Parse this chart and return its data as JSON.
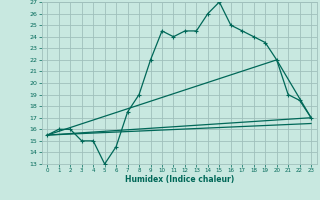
{
  "xlabel": "Humidex (Indice chaleur)",
  "bg_color": "#c8e8e0",
  "grid_color": "#a0c0bc",
  "line_color": "#006858",
  "xlim": [
    -0.5,
    23.5
  ],
  "ylim": [
    13,
    27
  ],
  "xticks": [
    0,
    1,
    2,
    3,
    4,
    5,
    6,
    7,
    8,
    9,
    10,
    11,
    12,
    13,
    14,
    15,
    16,
    17,
    18,
    19,
    20,
    21,
    22,
    23
  ],
  "yticks": [
    13,
    14,
    15,
    16,
    17,
    18,
    19,
    20,
    21,
    22,
    23,
    24,
    25,
    26,
    27
  ],
  "line1_x": [
    0,
    1,
    2,
    3,
    4,
    5,
    6,
    7,
    8,
    9,
    10,
    11,
    12,
    13,
    14,
    15,
    16,
    17,
    18,
    19,
    20,
    21,
    22,
    23
  ],
  "line1_y": [
    15.5,
    16.0,
    16.0,
    15.0,
    15.0,
    13.0,
    14.5,
    17.5,
    19.0,
    22.0,
    24.5,
    24.0,
    24.5,
    24.5,
    26.0,
    27.0,
    25.0,
    24.5,
    24.0,
    23.5,
    22.0,
    19.0,
    18.5,
    17.0
  ],
  "line2_x": [
    0,
    23
  ],
  "line2_y": [
    15.5,
    17.0
  ],
  "line3_x": [
    0,
    20,
    23
  ],
  "line3_y": [
    15.5,
    22.0,
    17.0
  ],
  "line4_x": [
    0,
    23
  ],
  "line4_y": [
    15.5,
    16.5
  ]
}
